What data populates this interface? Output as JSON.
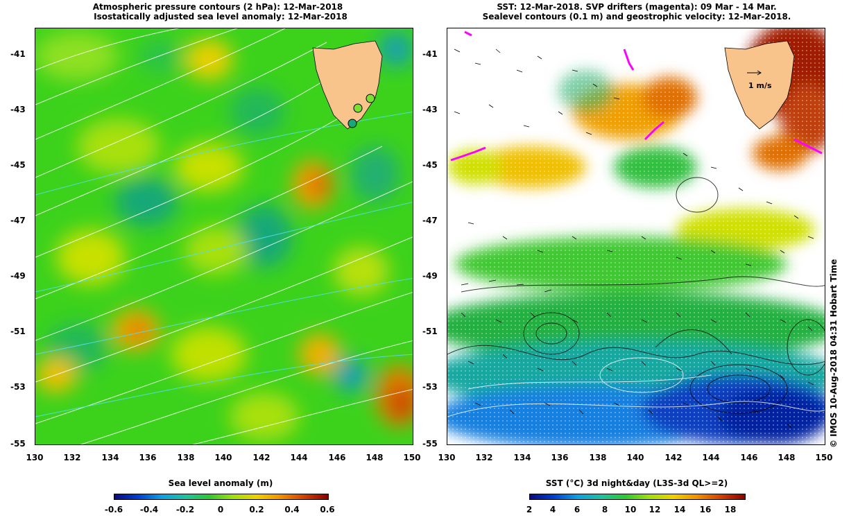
{
  "left": {
    "title_line1": "Atmospheric pressure contours (2 hPa): 12-Mar-2018",
    "title_line2": "Isostatically adjusted sea level anomaly: 12-Mar-2018",
    "colorbar_title": "Sea level anomaly (m)",
    "colorbar_ticks": [
      "-0.6",
      "-0.4",
      "-0.2",
      "0",
      "0.2",
      "0.4",
      "0.6"
    ]
  },
  "right": {
    "title_line1": "SST: 12-Mar-2018. SVP drifters (magenta): 09 Mar - 14 Mar.",
    "title_line2": "Sealevel contours (0.1 m) and geostrophic velocity: 12-Mar-2018.",
    "velocity_scale_label": "1 m/s",
    "colorbar_title": "SST (°C) 3d night&day (L3S-3d QL>=2)",
    "colorbar_ticks": [
      "2",
      "4",
      "6",
      "8",
      "10",
      "12",
      "14",
      "16",
      "18"
    ],
    "credit": "© IMOS 10-Aug-2018 04:31 Hobart Time"
  },
  "axes": {
    "lat_ticks": [
      "-41",
      "-43",
      "-45",
      "-47",
      "-49",
      "-51",
      "-53",
      "-55"
    ],
    "lon_ticks": [
      "130",
      "132",
      "134",
      "136",
      "138",
      "140",
      "142",
      "144",
      "146",
      "148",
      "150"
    ]
  },
  "colors": {
    "land": "#f9c48c",
    "land_right": "#a81a00",
    "drifter": "#ff00ff",
    "pressure_contour": "#ffffff",
    "sla_contour": "#55ddee"
  }
}
